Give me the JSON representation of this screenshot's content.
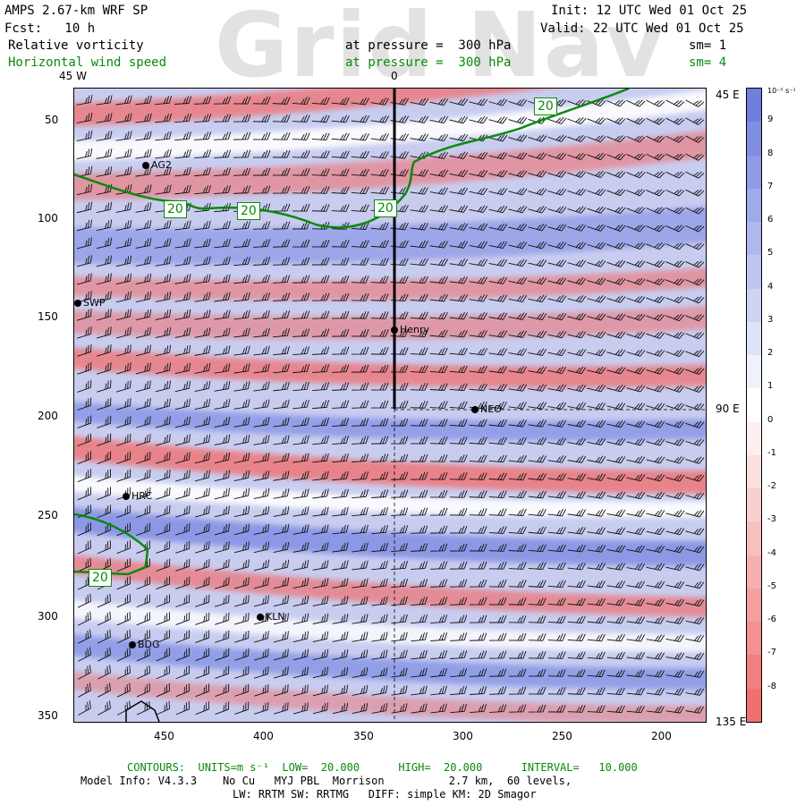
{
  "header": {
    "model": "AMPS 2.67-km WRF SP",
    "forecast": "Fcst:   10 h",
    "init": "Init: 12 UTC Wed 01 Oct 25",
    "valid": "Valid: 22 UTC Wed 01 Oct 25",
    "field1_name": "Relative vorticity",
    "field1_level": "at pressure =  300 hPa",
    "field1_sm": "sm= 1",
    "field2_name": "Horizontal wind speed",
    "field2_level": "at pressure =  300 hPa",
    "field2_sm": "sm= 4",
    "watermark": "Grid Nav"
  },
  "axes": {
    "y_ticks": [
      "50",
      "100",
      "150",
      "200",
      "250",
      "300",
      "350"
    ],
    "x_ticks": [
      "450",
      "400",
      "350",
      "300",
      "250",
      "200"
    ],
    "lon_top": [
      "45 W",
      "0"
    ],
    "lon_right": [
      "45 E",
      "90 E",
      "135 E"
    ]
  },
  "stations": [
    {
      "name": "AG2"
    },
    {
      "name": "SWP"
    },
    {
      "name": "Henry"
    },
    {
      "name": "NEO"
    },
    {
      "name": "HRC"
    },
    {
      "name": "KLN"
    },
    {
      "name": "BDG"
    }
  ],
  "contour_labels": [
    "20",
    "20",
    "20",
    "20",
    "20"
  ],
  "colorbar": {
    "unit": "10⁻⁵ s⁻¹",
    "labels": [
      "9",
      "8",
      "7",
      "6",
      "5",
      "4",
      "3",
      "2",
      "1",
      "0",
      "-1",
      "-2",
      "-3",
      "-4",
      "-5",
      "-6",
      "-7",
      "-8"
    ],
    "colors": {
      "pos": "#6f7fe0",
      "neg": "#f07070",
      "zero": "#ffffff"
    }
  },
  "footer": {
    "contours": "CONTOURS:  UNITS=m s⁻¹  LOW=  20.000      HIGH=  20.000      INTERVAL=   10.000",
    "model_info": "Model Info: V4.3.3    No Cu   MYJ PBL  Morrison          2.7 km,  60 levels,",
    "physics": "LW: RRTM SW: RRTMG   DIFF: simple KM: 2D Smagor"
  }
}
